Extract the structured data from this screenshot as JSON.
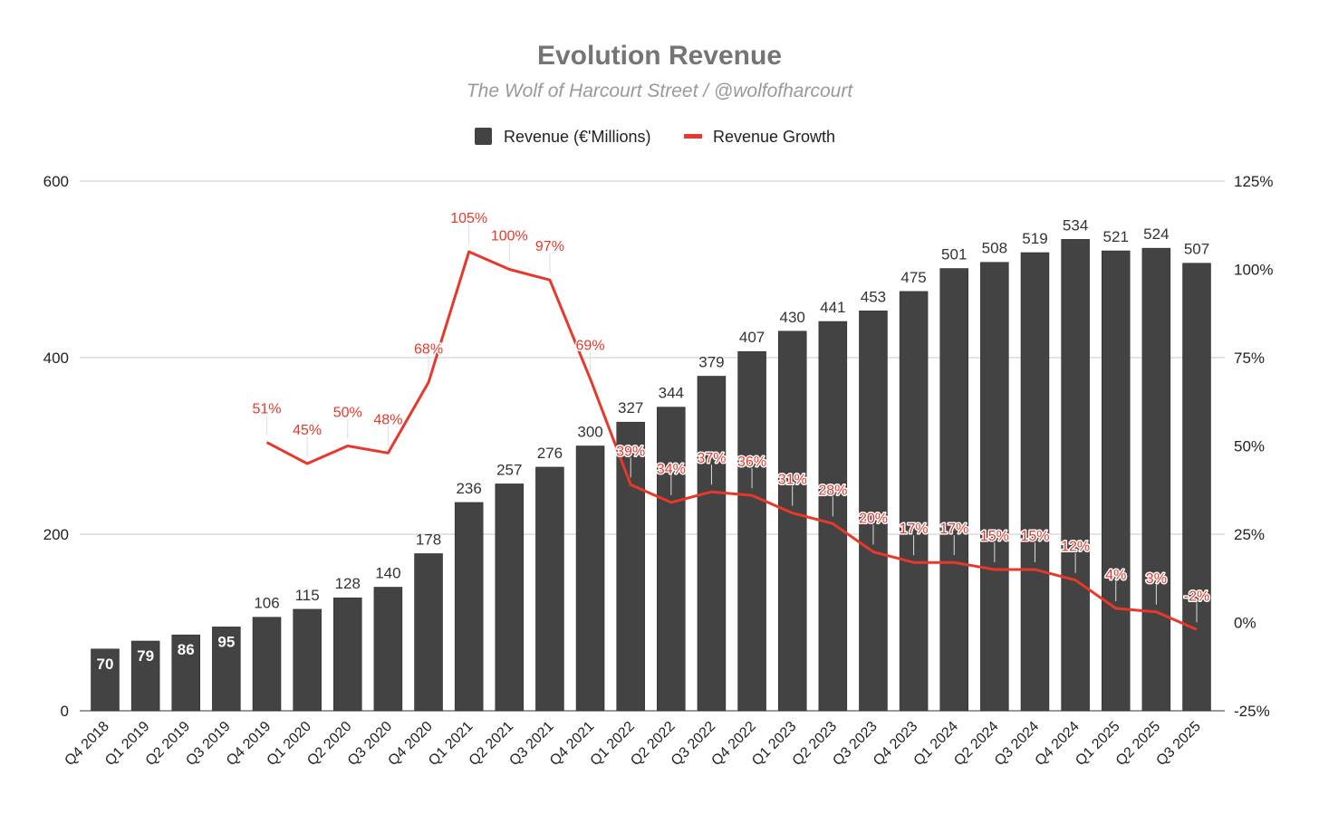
{
  "chart_data": {
    "type": "bar+line",
    "title": "Evolution Revenue",
    "subtitle": "The Wolf of Harcourt Street / @wolfofharcourt",
    "legend": {
      "placement": "top-center",
      "entries": [
        "Revenue (€'Millions)",
        "Revenue Growth"
      ]
    },
    "categories": [
      "Q4 2018",
      "Q1 2019",
      "Q2 2019",
      "Q3 2019",
      "Q4 2019",
      "Q1 2020",
      "Q2 2020",
      "Q3 2020",
      "Q4 2020",
      "Q1 2021",
      "Q2 2021",
      "Q3 2021",
      "Q4 2021",
      "Q1 2022",
      "Q2 2022",
      "Q3 2022",
      "Q4 2022",
      "Q1 2023",
      "Q2 2023",
      "Q3 2023",
      "Q4 2023",
      "Q1 2024",
      "Q2 2024",
      "Q3 2024",
      "Q4 2024",
      "Q1 2025",
      "Q2 2025",
      "Q3 2025"
    ],
    "series": [
      {
        "name": "Revenue (€'Millions)",
        "type": "bar",
        "axis": "left",
        "color": "#434343",
        "values": [
          70,
          79,
          86,
          95,
          106,
          115,
          128,
          140,
          178,
          236,
          257,
          276,
          300,
          327,
          344,
          379,
          407,
          430,
          441,
          453,
          475,
          501,
          508,
          519,
          534,
          521,
          524,
          507
        ]
      },
      {
        "name": "Revenue Growth",
        "type": "line",
        "axis": "right",
        "color": "#e8382b",
        "values": [
          null,
          null,
          null,
          null,
          51,
          45,
          50,
          48,
          68,
          105,
          100,
          97,
          69,
          39,
          34,
          37,
          36,
          31,
          28,
          20,
          17,
          17,
          15,
          15,
          12,
          4,
          3,
          -2
        ]
      }
    ],
    "y_left": {
      "min": 0,
      "max": 600,
      "ticks": [
        "0",
        "200",
        "400",
        "600"
      ]
    },
    "y_right": {
      "min": -25,
      "max": 125,
      "ticks": [
        "-25%",
        "0%",
        "25%",
        "50%",
        "75%",
        "100%",
        "125%"
      ]
    },
    "grid": true
  }
}
